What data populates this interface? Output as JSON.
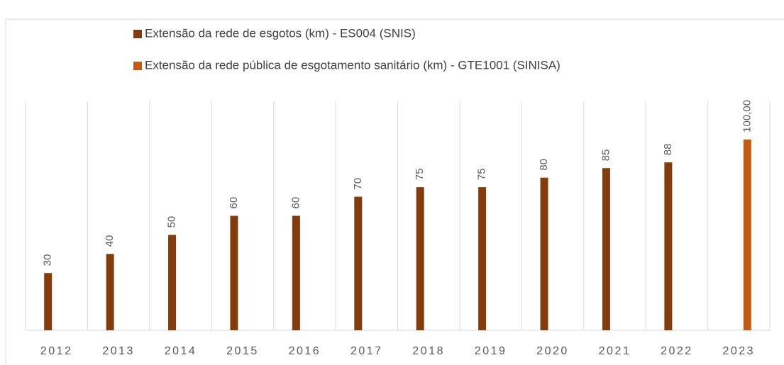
{
  "chart_data": {
    "type": "bar",
    "categories": [
      "2012",
      "2013",
      "2014",
      "2015",
      "2016",
      "2017",
      "2018",
      "2019",
      "2020",
      "2021",
      "2022",
      "2023"
    ],
    "series": [
      {
        "name": "Extensão da rede de esgotos (km) - ES004 (SNIS)",
        "color": "#843c0c",
        "values": [
          30,
          40,
          50,
          60,
          60,
          70,
          75,
          75,
          80,
          85,
          88,
          null
        ]
      },
      {
        "name": "Extensão da rede pública de esgotamento sanitário (km) - GTE1001 (SINISA)",
        "color": "#c55a11",
        "values": [
          null,
          null,
          null,
          null,
          null,
          null,
          null,
          null,
          null,
          null,
          null,
          100
        ],
        "value_labels": [
          null,
          null,
          null,
          null,
          null,
          null,
          null,
          null,
          null,
          null,
          null,
          "100,00"
        ]
      }
    ],
    "ylim": [
      0,
      120
    ],
    "grid": true
  }
}
